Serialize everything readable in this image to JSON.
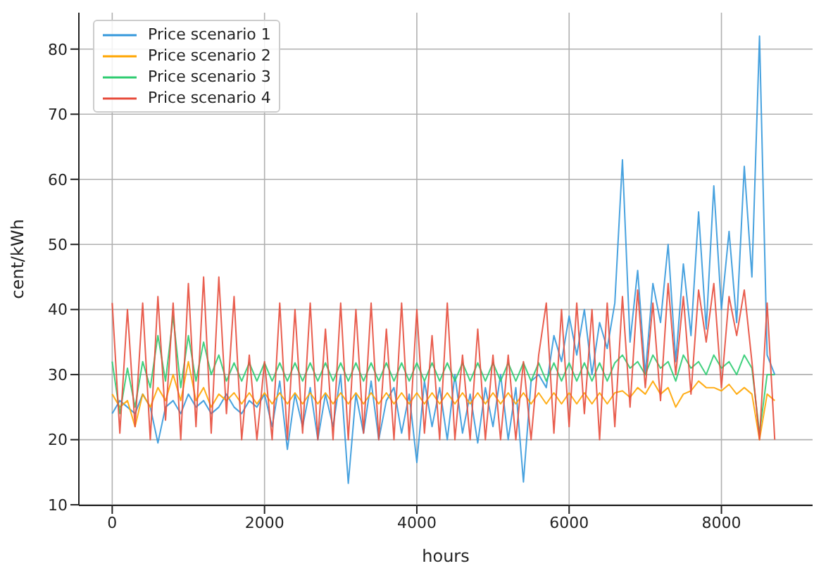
{
  "chart_data": {
    "type": "line",
    "xlabel": "hours",
    "ylabel": "cent/kWh",
    "x": [
      0,
      100,
      200,
      300,
      400,
      500,
      600,
      700,
      800,
      900,
      1000,
      1100,
      1200,
      1300,
      1400,
      1500,
      1600,
      1700,
      1800,
      1900,
      2000,
      2100,
      2200,
      2300,
      2400,
      2500,
      2600,
      2700,
      2800,
      2900,
      3000,
      3100,
      3200,
      3300,
      3400,
      3500,
      3600,
      3700,
      3800,
      3900,
      4000,
      4100,
      4200,
      4300,
      4400,
      4500,
      4600,
      4700,
      4800,
      4900,
      5000,
      5100,
      5200,
      5300,
      5400,
      5500,
      5600,
      5700,
      5800,
      5900,
      6000,
      6100,
      6200,
      6300,
      6400,
      6500,
      6600,
      6700,
      6800,
      6900,
      7000,
      7100,
      7200,
      7300,
      7400,
      7500,
      7600,
      7700,
      7800,
      7900,
      8000,
      8100,
      8200,
      8300,
      8400,
      8500,
      8600,
      8700
    ],
    "xlim": [
      -438,
      9197
    ],
    "xticks": [
      0,
      2000,
      4000,
      6000,
      8000
    ],
    "ylim": [
      9.9,
      85.6
    ],
    "yticks": [
      10,
      20,
      30,
      40,
      50,
      60,
      70,
      80
    ],
    "grid": true,
    "legend": "top left",
    "series": [
      {
        "name": "Price scenario 1",
        "color": "#3498db",
        "values": [
          24,
          26,
          25,
          24,
          27,
          25,
          19.5,
          25,
          26,
          24,
          27,
          25,
          26,
          24,
          25,
          27,
          25,
          24,
          26,
          25,
          27,
          22,
          29,
          18.5,
          27,
          22,
          28,
          20,
          27,
          22,
          30,
          13.3,
          27,
          21,
          29,
          20,
          26,
          28,
          21,
          27,
          16.5,
          29,
          22,
          28,
          20,
          30,
          21,
          27,
          19.5,
          28,
          22,
          30,
          20,
          28,
          13.5,
          29,
          30,
          28,
          36,
          32,
          39,
          33,
          40,
          30,
          38,
          34,
          41,
          63,
          35,
          46,
          30,
          44,
          38,
          50,
          32,
          47,
          36,
          55,
          37,
          59,
          40,
          52,
          38,
          62,
          45,
          82,
          33,
          30
        ]
      },
      {
        "name": "Price scenario 2",
        "color": "#ffa500",
        "values": [
          27,
          25,
          26,
          22,
          27,
          25,
          28,
          26,
          30,
          26,
          32,
          26,
          28,
          25,
          27,
          26,
          27.2,
          25.5,
          27.2,
          25.5,
          27.2,
          25.5,
          27.2,
          25.5,
          27.2,
          25.5,
          27.2,
          25.5,
          27.2,
          25.5,
          27.2,
          25.5,
          27.2,
          25.5,
          27.2,
          25.5,
          27.2,
          25.5,
          27.2,
          25.5,
          27.2,
          25.5,
          27.2,
          25.5,
          27.2,
          25.5,
          27.2,
          25.5,
          27.2,
          25.5,
          27.2,
          25.5,
          27.2,
          25.5,
          27.2,
          25.5,
          27.2,
          25.5,
          27.2,
          25.5,
          27.2,
          25.5,
          27.2,
          25.5,
          27.2,
          25.5,
          27.2,
          27.5,
          26.5,
          28,
          27,
          29,
          27,
          28,
          25,
          27,
          27.5,
          29,
          28,
          28,
          27.5,
          28.5,
          27,
          28,
          27,
          20,
          27,
          26
        ]
      },
      {
        "name": "Price scenario 3",
        "color": "#2ecc71",
        "values": [
          32,
          24,
          31,
          25,
          32,
          28,
          36,
          29,
          39,
          28,
          36,
          29,
          35,
          30,
          33,
          29,
          31.8,
          29,
          31.8,
          29,
          31.8,
          29,
          31.8,
          29,
          31.8,
          29,
          31.8,
          29,
          31.8,
          29,
          31.8,
          29,
          31.8,
          29,
          31.8,
          29,
          31.8,
          29,
          31.8,
          29,
          31.8,
          29,
          31.8,
          29,
          31.8,
          29,
          31.8,
          29,
          31.8,
          29,
          31.8,
          29,
          31.8,
          29,
          31.8,
          29,
          31.8,
          29,
          31.8,
          29,
          31.8,
          29,
          31.8,
          29,
          31.8,
          29,
          31.8,
          33,
          31,
          32,
          30,
          33,
          31,
          32,
          29,
          33,
          31,
          32,
          30,
          33,
          31,
          32,
          30,
          33,
          31,
          21,
          30,
          30
        ]
      },
      {
        "name": "Price scenario 4",
        "color": "#e74c3c",
        "values": [
          41,
          21,
          40,
          22,
          41,
          20,
          42,
          23,
          41,
          20,
          44,
          22,
          45,
          21,
          45,
          24,
          42,
          20,
          33,
          20,
          32,
          20,
          41,
          20,
          40,
          21,
          41,
          20,
          37,
          20,
          41,
          20,
          40,
          21,
          41,
          20,
          37,
          20,
          41,
          20,
          40,
          21,
          36,
          20,
          41,
          20,
          33,
          20,
          37,
          20,
          33,
          20,
          33,
          20,
          32,
          20,
          33,
          41,
          21,
          40,
          22,
          41,
          24,
          40,
          20,
          41,
          22,
          42,
          25,
          43,
          28,
          41,
          26,
          44,
          30,
          42,
          27,
          43,
          35,
          44,
          28,
          42,
          36,
          43,
          32,
          20,
          41,
          20
        ]
      }
    ]
  }
}
